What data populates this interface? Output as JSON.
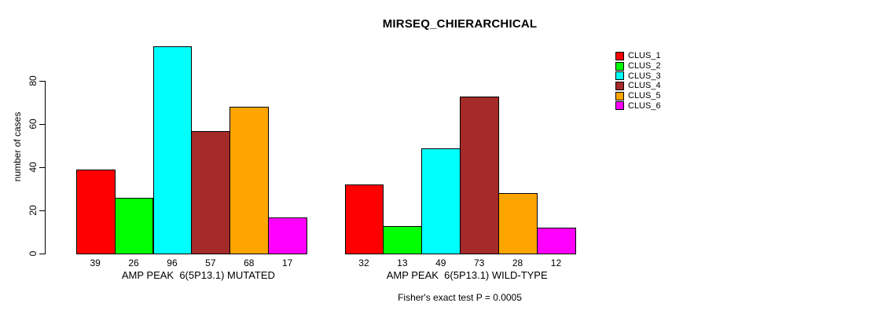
{
  "title": "MIRSEQ_CHIERARCHICAL",
  "caption": "Fisher's exact test P = 0.0005",
  "chart_data": {
    "type": "bar",
    "title": "MIRSEQ_CHIERARCHICAL",
    "xlabel": "",
    "ylabel": "number of cases",
    "ylim": [
      0,
      96
    ],
    "yticks": [
      0,
      20,
      40,
      60,
      80
    ],
    "grid": false,
    "legend_position": "right",
    "series": [
      {
        "name": "CLUS_1",
        "color": "#ff0000",
        "values": [
          39,
          32
        ]
      },
      {
        "name": "CLUS_2",
        "color": "#00ff00",
        "values": [
          26,
          13
        ]
      },
      {
        "name": "CLUS_3",
        "color": "#00ffff",
        "values": [
          96,
          49
        ]
      },
      {
        "name": "CLUS_4",
        "color": "#a52a2a",
        "values": [
          57,
          73
        ]
      },
      {
        "name": "CLUS_5",
        "color": "#ffa500",
        "values": [
          68,
          28
        ]
      },
      {
        "name": "CLUS_6",
        "color": "#ff00ff",
        "values": [
          17,
          12
        ]
      }
    ],
    "groups": [
      {
        "label": "AMP PEAK  6(5P13.1) MUTATED",
        "values": [
          39,
          26,
          96,
          57,
          68,
          17
        ],
        "value_labels": [
          "39",
          "26",
          "96",
          "57",
          "68",
          "17"
        ]
      },
      {
        "label": "AMP PEAK  6(5P13.1) WILD-TYPE",
        "values": [
          32,
          13,
          49,
          73,
          28,
          12
        ],
        "value_labels": [
          "32",
          "13",
          "49",
          "73",
          "28",
          "12"
        ]
      }
    ],
    "annotation": "Fisher's exact test P = 0.0005",
    "bar_border_color": "#000000",
    "axis_color": "#000000"
  }
}
